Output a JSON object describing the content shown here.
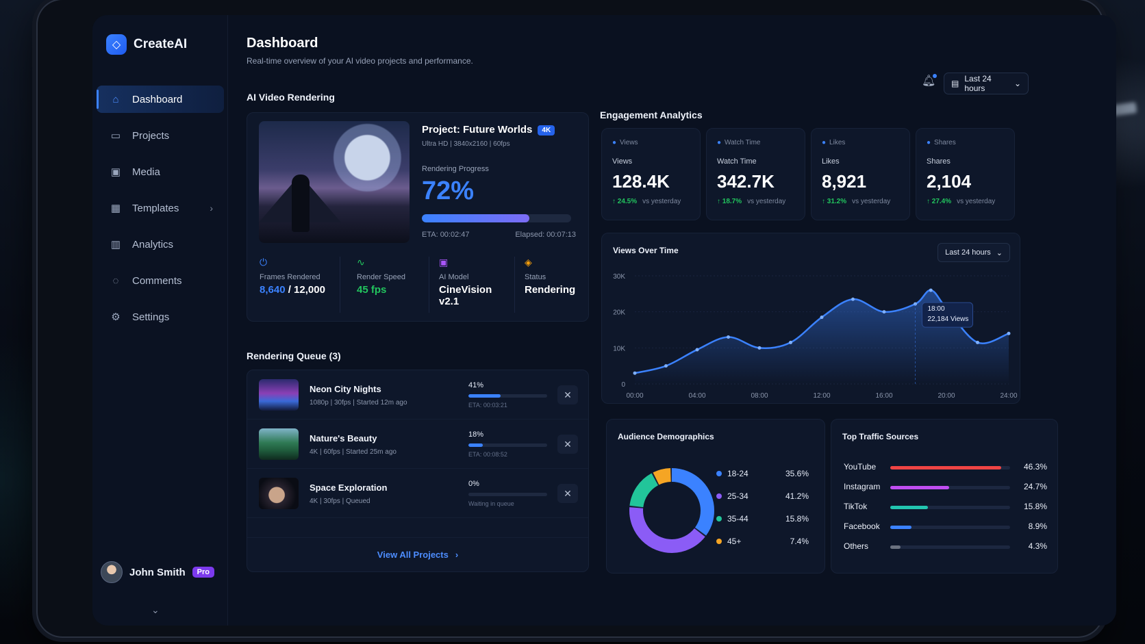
{
  "brand": {
    "name": "CreateAI"
  },
  "nav": [
    {
      "label": "Dashboard",
      "icon": "home-icon",
      "active": true
    },
    {
      "label": "Projects",
      "icon": "folder-icon"
    },
    {
      "label": "Media",
      "icon": "media-icon"
    },
    {
      "label": "Templates",
      "icon": "template-icon",
      "has_chevron": true
    },
    {
      "label": "Analytics",
      "icon": "analytics-icon"
    },
    {
      "label": "Comments",
      "icon": "comment-icon"
    },
    {
      "label": "Settings",
      "icon": "gear-icon"
    }
  ],
  "user": {
    "name": "John Smith",
    "plan": "Pro"
  },
  "header": {
    "title": "Dashboard",
    "subtitle": "Real-time overview of your AI video projects and performance.",
    "range": "Last 24 hours"
  },
  "rendering": {
    "section_title": "AI Video Rendering",
    "project": {
      "name": "Project: Future Worlds",
      "badge": "4K",
      "meta": "Ultra HD | 3840x2160 | 60fps"
    },
    "progress_label": "Rendering Progress",
    "progress_text": "72%",
    "progress": 0.72,
    "eta": "ETA: 00:02:47",
    "elapsed": "Elapsed: 00:07:13",
    "stats": {
      "frames_label": "Frames Rendered",
      "frames_done": "8,640",
      "frames_total": "/ 12,000",
      "speed_label": "Render Speed",
      "speed_val": "45 fps",
      "model_label": "AI Model",
      "model_val": "CineVision v2.1",
      "status_label": "Status",
      "status_val": "Rendering"
    }
  },
  "queue": {
    "title": "Rendering Queue (3)",
    "items": [
      {
        "title": "Neon City Nights",
        "meta": "1080p | 30fps | Started 12m ago",
        "pct": "41%",
        "progress": 0.41,
        "sub": "ETA: 00:03:21"
      },
      {
        "title": "Nature's Beauty",
        "meta": "4K | 60fps | Started 25m ago",
        "pct": "18%",
        "progress": 0.18,
        "sub": "ETA: 00:08:52"
      },
      {
        "title": "Space Exploration",
        "meta": "4K | 30fps | Queued",
        "pct": "0%",
        "progress": 0,
        "sub": "Waiting in queue"
      }
    ],
    "view_all": "View All Projects"
  },
  "engagement": {
    "title": "Engagement Analytics",
    "kpis": [
      {
        "head": "Views",
        "label": "Views",
        "value": "128.4K",
        "delta": "↑ 24.5%",
        "vs": "vs yesterday",
        "icon": "eye-icon"
      },
      {
        "head": "Watch Time",
        "label": "Watch Time",
        "value": "342.7K",
        "delta": "↑ 18.7%",
        "vs": "vs yesterday",
        "icon": "clock-icon"
      },
      {
        "head": "Likes",
        "label": "Likes",
        "value": "8,921",
        "delta": "↑ 31.2%",
        "vs": "vs yesterday",
        "icon": "thumbs-up-icon"
      },
      {
        "head": "Shares",
        "label": "Shares",
        "value": "2,104",
        "delta": "↑ 27.4%",
        "vs": "vs yesterday",
        "icon": "share-icon"
      }
    ]
  },
  "views_chart": {
    "title": "Views Over Time",
    "range": "Last 24 hours",
    "tooltip": {
      "time": "18:00",
      "value": "22,184 Views"
    },
    "chart_data": {
      "type": "area",
      "x": [
        "00:00",
        "02:00",
        "04:00",
        "06:00",
        "08:00",
        "10:00",
        "12:00",
        "14:00",
        "16:00",
        "18:00",
        "19:00",
        "20:00",
        "22:00",
        "24:00"
      ],
      "y": [
        3000,
        5000,
        9500,
        13000,
        10000,
        11500,
        18500,
        23500,
        20000,
        22184,
        26000,
        21000,
        11500,
        14000
      ],
      "xticks": [
        "00:00",
        "04:00",
        "08:00",
        "12:00",
        "16:00",
        "20:00",
        "24:00"
      ],
      "yticks": [
        "0",
        "10K",
        "20K",
        "30K"
      ],
      "ylim": [
        0,
        30000
      ],
      "color": "#3b82ff"
    }
  },
  "demographics": {
    "title": "Audience Demographics",
    "chart_data": {
      "type": "pie",
      "labels": [
        "18-24",
        "25-34",
        "35-44",
        "45+"
      ],
      "values": [
        35.6,
        41.2,
        15.8,
        7.4
      ],
      "value_labels": [
        "35.6%",
        "41.2%",
        "15.8%",
        "7.4%"
      ],
      "colors": [
        "#3b82ff",
        "#8b5cf6",
        "#22c59a",
        "#f5a524"
      ]
    }
  },
  "traffic": {
    "title": "Top Traffic Sources",
    "chart_data": {
      "type": "bar",
      "categories": [
        "YouTube",
        "Instagram",
        "TikTok",
        "Facebook",
        "Others"
      ],
      "values": [
        46.3,
        24.7,
        15.8,
        8.9,
        4.3
      ],
      "value_labels": [
        "46.3%",
        "24.7%",
        "15.8%",
        "8.9%",
        "4.3%"
      ],
      "colors": [
        "#ef4444",
        "#c04df0",
        "#22c5b0",
        "#3b82ff",
        "#6b7280"
      ]
    }
  }
}
